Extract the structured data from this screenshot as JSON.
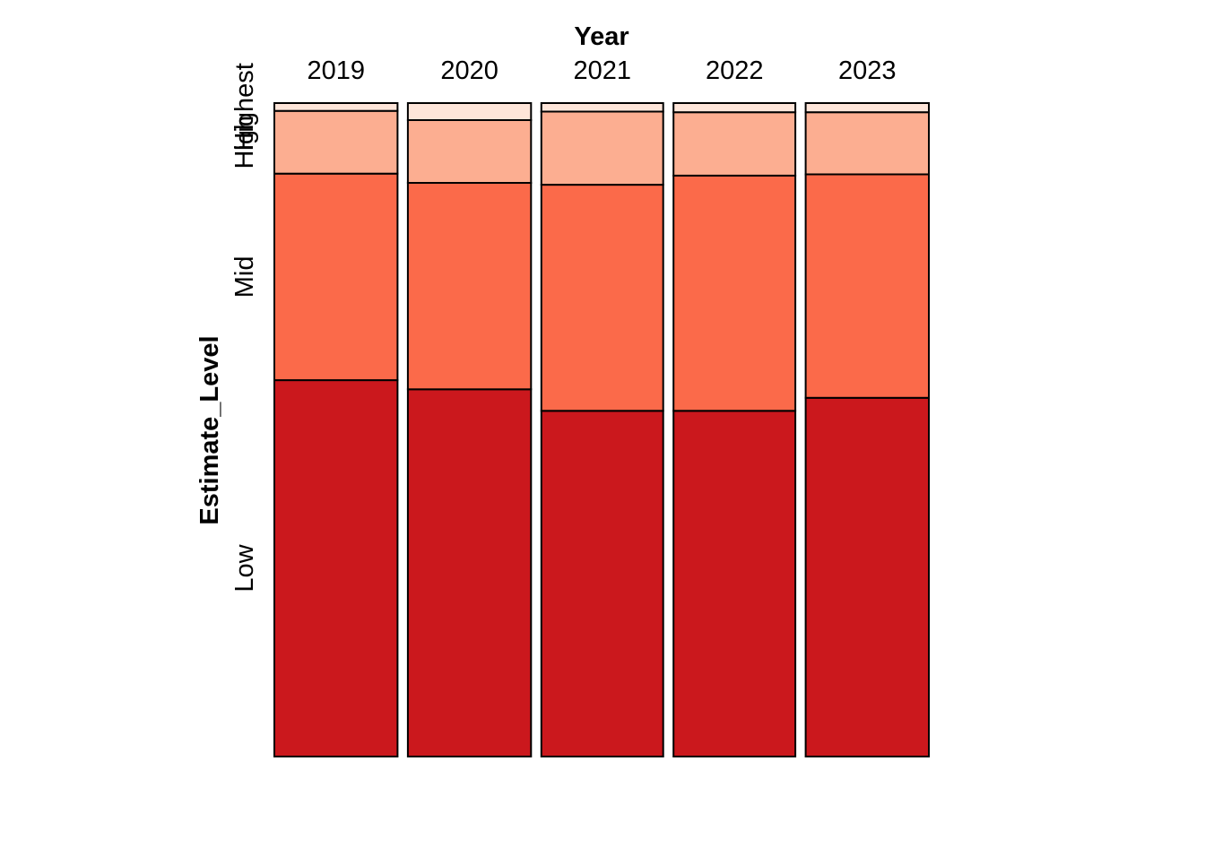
{
  "chart_data": {
    "type": "mosaic",
    "xlabel": "Year",
    "ylabel": "Estimate_Level",
    "categories": [
      "2019",
      "2020",
      "2021",
      "2022",
      "2023"
    ],
    "column_widths": [
      0.188,
      0.188,
      0.186,
      0.186,
      0.188
    ],
    "levels": [
      "Low",
      "Mid",
      "High",
      "Highest"
    ],
    "series": [
      {
        "name": "Low",
        "values": [
          0.576,
          0.562,
          0.529,
          0.529,
          0.549
        ],
        "color": "#CB181D"
      },
      {
        "name": "Mid",
        "values": [
          0.316,
          0.316,
          0.346,
          0.36,
          0.342
        ],
        "color": "#FB6A4A"
      },
      {
        "name": "High",
        "values": [
          0.096,
          0.096,
          0.112,
          0.097,
          0.095
        ],
        "color": "#FCAE91"
      },
      {
        "name": "Highest",
        "values": [
          0.012,
          0.026,
          0.013,
          0.014,
          0.014
        ],
        "color": "#FEE5D9"
      }
    ]
  }
}
